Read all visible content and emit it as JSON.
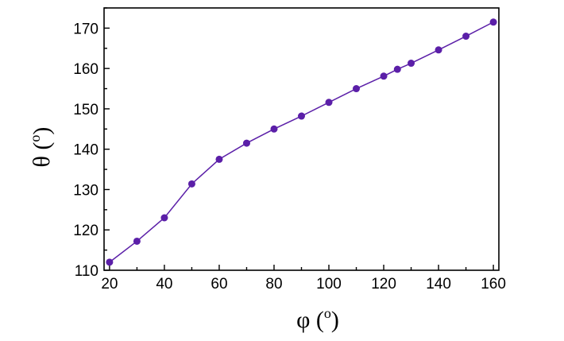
{
  "chart_data": {
    "type": "line",
    "title": "",
    "xlabel": "φ (o)",
    "ylabel": "θ (o)",
    "xlabel_parts": {
      "symbol": "φ",
      "open": " (",
      "unit": "o",
      "close": ")"
    },
    "ylabel_parts": {
      "symbol": "θ",
      "open": " (",
      "unit": "o",
      "close": ")"
    },
    "xlim": [
      18,
      162
    ],
    "ylim": [
      110,
      175
    ],
    "x_ticks": [
      20,
      40,
      60,
      80,
      100,
      120,
      140,
      160
    ],
    "y_ticks": [
      110,
      120,
      130,
      140,
      150,
      160,
      170
    ],
    "grid": false,
    "legend": "none",
    "series": [
      {
        "color": "#5b1fa8",
        "marker": "circle",
        "x": [
          20,
          30,
          40,
          50,
          60,
          70,
          80,
          90,
          100,
          110,
          120,
          125,
          130,
          140,
          150,
          160
        ],
        "y": [
          112.0,
          117.2,
          123.0,
          131.4,
          137.5,
          141.5,
          145.0,
          148.2,
          151.6,
          155.0,
          158.1,
          159.8,
          161.3,
          164.6,
          168.0,
          171.5
        ]
      }
    ]
  }
}
